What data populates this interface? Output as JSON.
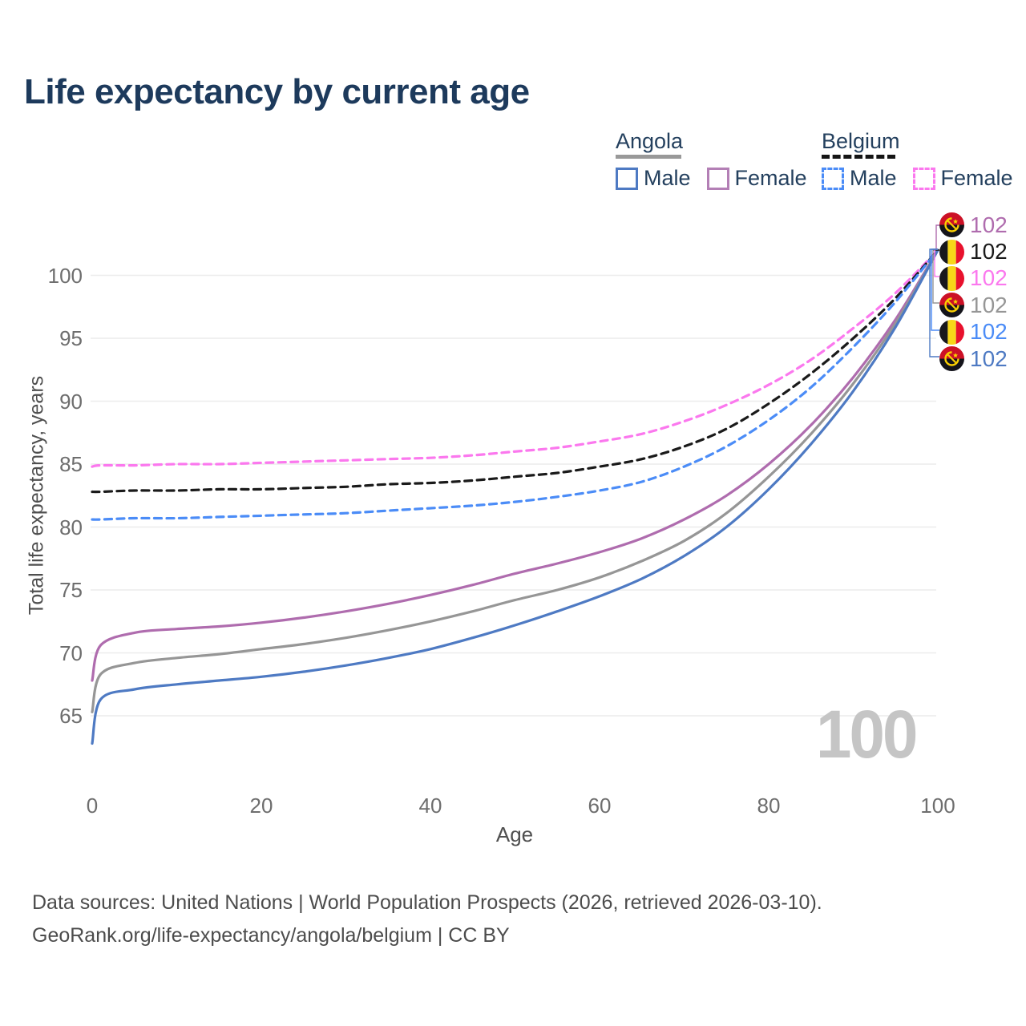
{
  "title": "Life expectancy by current age",
  "watermark": "100",
  "legend": {
    "groups": [
      {
        "label": "Angola",
        "line_style": "solid",
        "line_color": "#999999",
        "items": [
          {
            "label": "Male",
            "color": "#4e7ac3",
            "dashed": false
          },
          {
            "label": "Female",
            "color": "#b37fb5",
            "dashed": false
          }
        ]
      },
      {
        "label": "Belgium",
        "line_style": "dashed",
        "line_color": "#151515",
        "items": [
          {
            "label": "Male",
            "color": "#4b8cf7",
            "dashed": true
          },
          {
            "label": "Female",
            "color": "#fb78ee",
            "dashed": true
          }
        ]
      }
    ]
  },
  "footer": {
    "line1": "Data sources: United Nations | World Population Prospects (2026, retrieved 2026-03-10).",
    "line2": "GeoRank.org/life-expectancy/angola/belgium | CC BY"
  },
  "chart_data": {
    "type": "line",
    "title": "Life expectancy by current age",
    "xlabel": "Age",
    "ylabel": "Total life expectancy, years",
    "xlim": [
      0,
      100
    ],
    "ylim": [
      62,
      103
    ],
    "x_ticks": [
      0,
      20,
      40,
      60,
      80,
      100
    ],
    "y_ticks": [
      65,
      70,
      75,
      80,
      85,
      90,
      95,
      100
    ],
    "grid": "horizontal",
    "legend_position": "top-right",
    "x": [
      0,
      1,
      5,
      10,
      15,
      20,
      25,
      30,
      35,
      40,
      45,
      50,
      55,
      60,
      65,
      70,
      75,
      80,
      85,
      90,
      95,
      100
    ],
    "series": [
      {
        "name": "belgium_female",
        "label": "Belgium Female",
        "color": "#fb78ee",
        "dashed": true,
        "values": [
          84.8,
          84.9,
          84.9,
          85.0,
          85.0,
          85.1,
          85.2,
          85.3,
          85.4,
          85.5,
          85.7,
          86.0,
          86.3,
          86.8,
          87.4,
          88.4,
          89.7,
          91.3,
          93.3,
          95.8,
          98.6,
          102
        ]
      },
      {
        "name": "belgium_both",
        "label": "Belgium",
        "color": "#1a1a1a",
        "dashed": true,
        "values": [
          82.8,
          82.8,
          82.9,
          82.9,
          83.0,
          83.0,
          83.1,
          83.2,
          83.4,
          83.5,
          83.7,
          84.0,
          84.3,
          84.8,
          85.4,
          86.4,
          87.8,
          89.8,
          92.2,
          95.0,
          98.2,
          102
        ]
      },
      {
        "name": "belgium_male",
        "label": "Belgium Male",
        "color": "#4b8cf7",
        "dashed": true,
        "values": [
          80.6,
          80.6,
          80.7,
          80.7,
          80.8,
          80.9,
          81.0,
          81.1,
          81.3,
          81.5,
          81.7,
          82.0,
          82.4,
          82.9,
          83.6,
          84.8,
          86.4,
          88.5,
          91.1,
          94.3,
          97.9,
          102
        ]
      },
      {
        "name": "angola_female",
        "label": "Angola Female",
        "color": "#af6cae",
        "dashed": false,
        "values": [
          67.8,
          70.6,
          71.6,
          71.9,
          72.1,
          72.4,
          72.8,
          73.3,
          73.9,
          74.6,
          75.4,
          76.3,
          77.1,
          78.0,
          79.1,
          80.6,
          82.5,
          85.0,
          88.1,
          91.9,
          96.5,
          102
        ]
      },
      {
        "name": "angola_both",
        "label": "Angola",
        "color": "#969696",
        "dashed": false,
        "values": [
          65.3,
          68.3,
          69.2,
          69.6,
          69.9,
          70.3,
          70.7,
          71.2,
          71.8,
          72.5,
          73.3,
          74.2,
          75.0,
          76.0,
          77.3,
          78.9,
          81.1,
          84.0,
          87.4,
          91.4,
          96.2,
          102
        ]
      },
      {
        "name": "angola_male",
        "label": "Angola Male",
        "color": "#4e7ac3",
        "dashed": false,
        "values": [
          62.8,
          66.3,
          67.1,
          67.5,
          67.8,
          68.1,
          68.5,
          69.0,
          69.6,
          70.3,
          71.2,
          72.2,
          73.3,
          74.5,
          75.9,
          77.7,
          80.0,
          83.0,
          86.6,
          90.8,
          95.9,
          102
        ]
      }
    ],
    "end_labels": [
      {
        "series": "angola_female",
        "flag": "angola",
        "value": "102",
        "color": "#af6cae"
      },
      {
        "series": "belgium_both",
        "flag": "belgium",
        "value": "102",
        "color": "#1a1a1a"
      },
      {
        "series": "belgium_female",
        "flag": "belgium",
        "value": "102",
        "color": "#fb78ee"
      },
      {
        "series": "angola_both",
        "flag": "angola",
        "value": "102",
        "color": "#969696"
      },
      {
        "series": "belgium_male",
        "flag": "belgium",
        "value": "102",
        "color": "#4b8cf7"
      },
      {
        "series": "angola_male",
        "flag": "angola",
        "value": "102",
        "color": "#4e7ac3"
      }
    ]
  }
}
